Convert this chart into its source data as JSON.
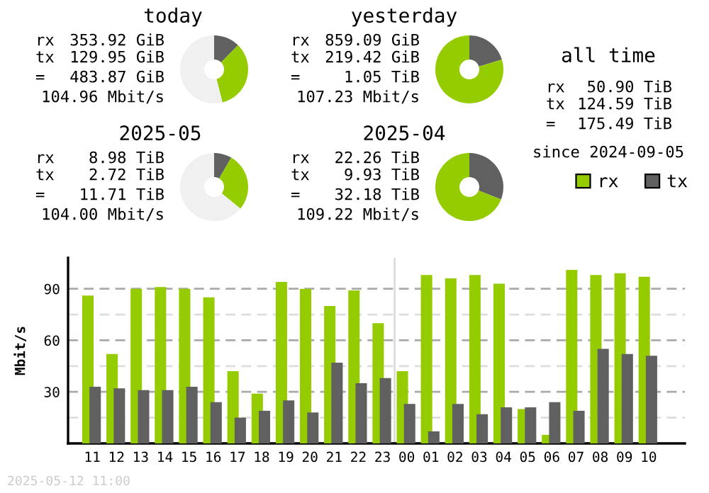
{
  "chart_data": [
    {
      "type": "donut",
      "title": "today",
      "categories": [
        null,
        null,
        null
      ],
      "values": [
        12.4,
        33.7,
        53.9
      ],
      "colors": [
        "#606060",
        "#94cc00",
        "#f0f0f0"
      ],
      "annotations": [
        "rx 353.92 GiB",
        "tx 129.95 GiB",
        "= 483.87 GiB",
        "104.96 Mbit/s"
      ]
    },
    {
      "type": "donut",
      "title": "yesterday",
      "categories": [
        null,
        null
      ],
      "values": [
        20.3,
        79.7
      ],
      "colors": [
        "#606060",
        "#94cc00"
      ],
      "annotations": [
        "rx 859.09 GiB",
        "tx 219.42 GiB",
        "= 1.05 TiB",
        "107.23 Mbit/s"
      ]
    },
    {
      "type": "donut",
      "title": "2025-05",
      "categories": [
        null,
        null,
        null
      ],
      "values": [
        8.4,
        27.6,
        64.0
      ],
      "colors": [
        "#606060",
        "#94cc00",
        "#f0f0f0"
      ],
      "annotations": [
        "rx 8.98 TiB",
        "tx 2.72 TiB",
        "= 11.71 TiB",
        "104.00 Mbit/s"
      ]
    },
    {
      "type": "donut",
      "title": "2025-04",
      "categories": [
        null,
        null
      ],
      "values": [
        30.9,
        69.1
      ],
      "colors": [
        "#606060",
        "#94cc00"
      ],
      "annotations": [
        "rx 22.26 TiB",
        "tx 9.93 TiB",
        "= 32.18 TiB",
        "109.22 Mbit/s"
      ]
    },
    {
      "type": "other",
      "title": "all time",
      "annotations": [
        "rx 50.90 TiB",
        "tx 124.59 TiB",
        "= 175.49 TiB",
        "since 2024-09-05"
      ]
    },
    {
      "type": "bar",
      "ylabel": "Mbit/s",
      "categories": [
        "11",
        "12",
        "13",
        "14",
        "15",
        "16",
        "17",
        "18",
        "19",
        "20",
        "21",
        "22",
        "23",
        "00",
        "01",
        "02",
        "03",
        "04",
        "05",
        "06",
        "07",
        "08",
        "09",
        "10"
      ],
      "series": [
        {
          "name": "rx",
          "color": "#94cc00",
          "values": [
            86,
            52,
            90,
            91,
            90,
            85,
            42,
            29,
            94,
            90,
            80,
            89,
            70,
            42,
            98,
            96,
            98,
            93,
            20,
            5,
            101,
            98,
            99,
            97
          ]
        },
        {
          "name": "tx",
          "color": "#606060",
          "values": [
            33,
            32,
            31,
            31,
            33,
            24,
            15,
            19,
            25,
            18,
            47,
            35,
            38,
            23,
            7,
            23,
            17,
            21,
            21,
            24,
            19,
            55,
            52,
            51
          ]
        }
      ],
      "ylim": [
        0,
        108
      ],
      "yticks": [
        {
          "value": 15,
          "label": null
        },
        30,
        {
          "value": 45,
          "label": null
        },
        60,
        {
          "value": 75,
          "label": null
        },
        90
      ],
      "grid": "y",
      "legend": "top right",
      "ref_lines": [
        {
          "axis": "x",
          "value": "00",
          "color": "#dddddd"
        }
      ],
      "annotations": [
        "2025-05-12 11:00"
      ]
    }
  ]
}
